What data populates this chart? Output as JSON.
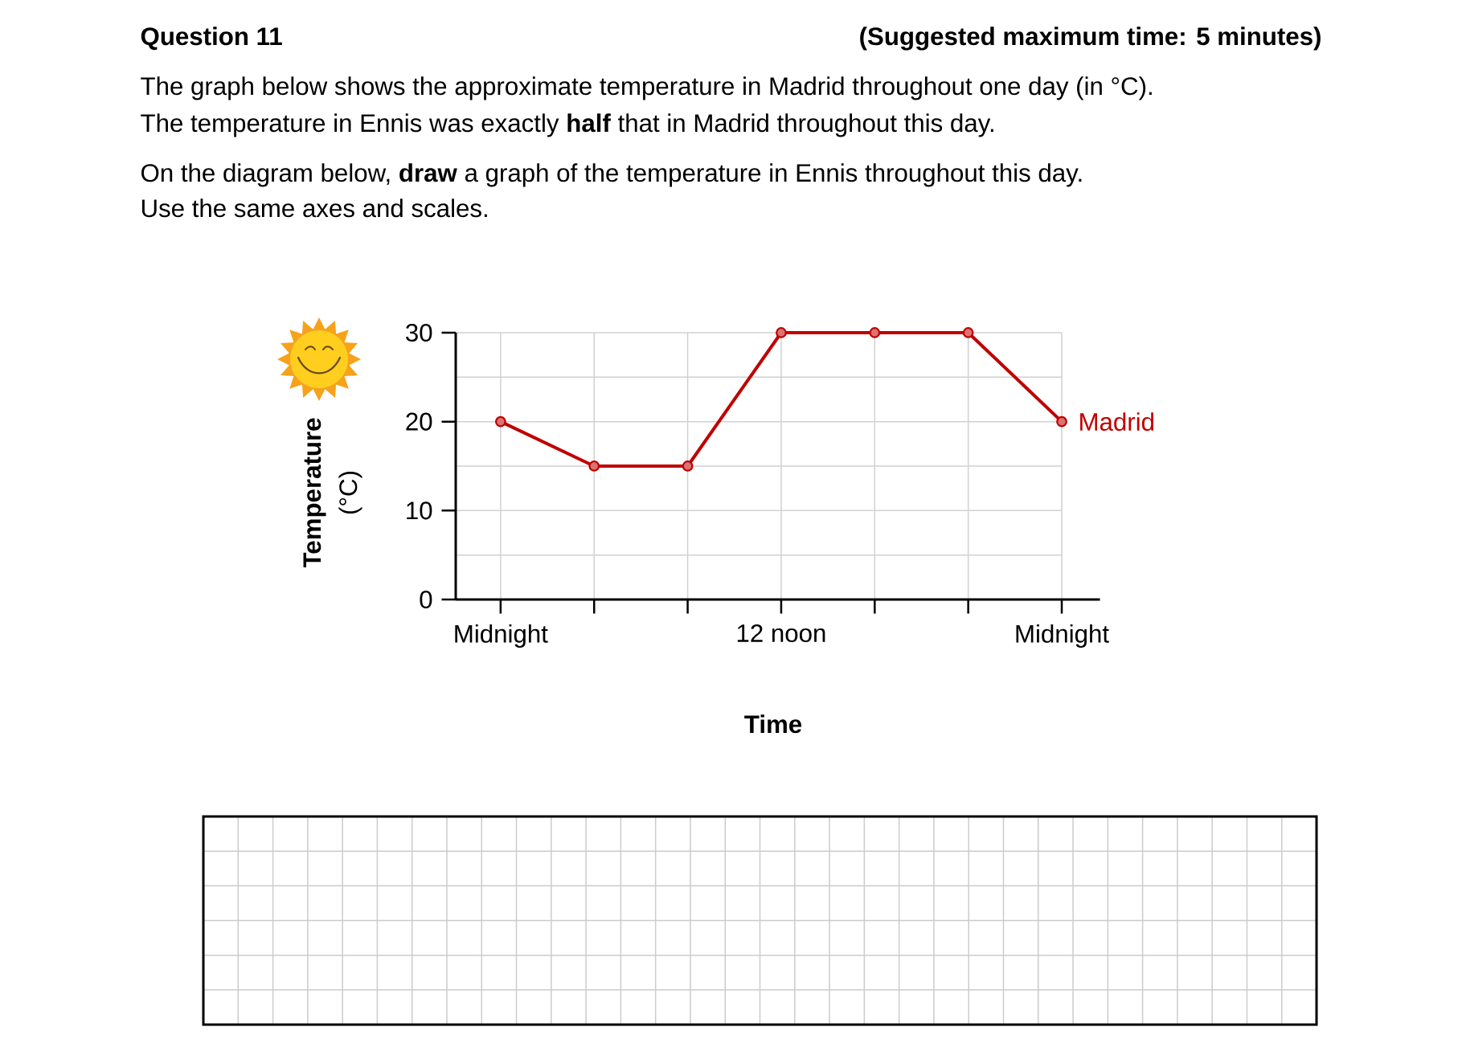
{
  "chart_data": {
    "type": "line",
    "title": "Question 11",
    "subtitle": "(Suggested maximum time: 5 minutes)",
    "annotations": [
      "The graph below shows the approximate temperature in Madrid throughout one day (in °C).",
      "The temperature in Ennis was exactly **half** that in Madrid throughout this day.",
      "On the diagram below, **draw** a graph of the temperature in Ennis throughout this day.",
      "Use the same axes and scales."
    ],
    "xlabel": "Time",
    "ylabel": "**Temperature** (°C)",
    "categories": [
      "Midnight",
      null,
      null,
      "12 noon",
      null,
      null,
      "Midnight"
    ],
    "series": [
      {
        "name": "Madrid",
        "color": "#c00000",
        "values": [
          20,
          15,
          15,
          30,
          30,
          30,
          20
        ]
      }
    ],
    "ylim": [
      0,
      30
    ],
    "yticks": [
      0,
      10,
      20,
      30
    ],
    "grid": true,
    "marker": "circle",
    "line_style": "solid"
  }
}
